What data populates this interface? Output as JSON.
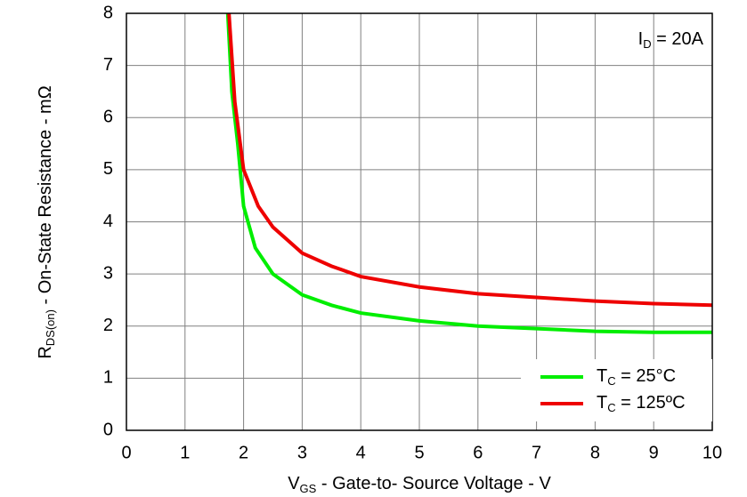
{
  "chart_data": {
    "type": "line",
    "xlabel": {
      "text": "V",
      "sub": "GS",
      "rest": " - Gate-to- Source Voltage - V"
    },
    "ylabel": {
      "text": "R",
      "sub": "DS(on)",
      "rest": " - On-State Resistance - mΩ"
    },
    "annotation": {
      "text": "I",
      "sub": "D",
      "rest": " = 20A"
    },
    "xlim": [
      0,
      10
    ],
    "xticks": [
      0,
      1,
      2,
      3,
      4,
      5,
      6,
      7,
      8,
      9,
      10
    ],
    "ylim": [
      0,
      8
    ],
    "yticks": [
      0,
      1,
      2,
      3,
      4,
      5,
      6,
      7,
      8
    ],
    "grid": true,
    "legend": "lower right",
    "series": [
      {
        "name": {
          "text": "T",
          "sub": "C",
          "rest": " = 25°C"
        },
        "color": "#00ee00",
        "x": [
          1.73,
          1.8,
          1.9,
          2.0,
          2.2,
          2.5,
          3,
          3.5,
          4,
          5,
          6,
          7,
          8,
          9,
          10
        ],
        "values": [
          8,
          6.5,
          5.5,
          4.3,
          3.5,
          3.0,
          2.6,
          2.4,
          2.25,
          2.1,
          2.0,
          1.95,
          1.9,
          1.88,
          1.88
        ]
      },
      {
        "name": {
          "text": "T",
          "sub": "C",
          "rest": " = 125ºC"
        },
        "color": "#ee0000",
        "x": [
          1.75,
          1.85,
          2.0,
          2.25,
          2.5,
          3,
          3.5,
          4,
          5,
          6,
          7,
          8,
          9,
          10
        ],
        "values": [
          8,
          6.3,
          5.0,
          4.3,
          3.9,
          3.4,
          3.15,
          2.95,
          2.75,
          2.62,
          2.55,
          2.48,
          2.43,
          2.4
        ]
      }
    ]
  }
}
